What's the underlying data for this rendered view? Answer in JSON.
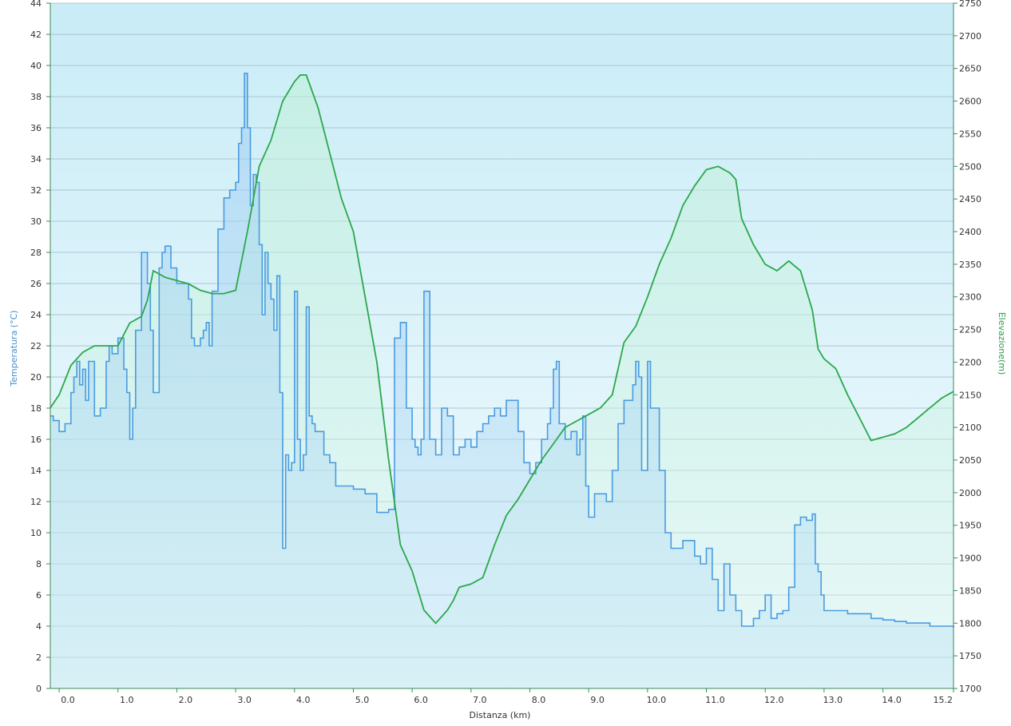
{
  "chart_data": {
    "type": "line",
    "title": "",
    "xlabel": "Distanza  (km)",
    "ylabel_left": "Temperatura (°C)",
    "ylabel_right": "Elevazione(m)",
    "xlim": [
      -0.15,
      15.2
    ],
    "ylim_left": [
      0,
      44
    ],
    "ylim_right": [
      1700,
      2750
    ],
    "x_ticks": [
      "0.0",
      "1.0",
      "2.0",
      "3.0",
      "4.0",
      "5.0",
      "6.0",
      "7.0",
      "8.0",
      "9.0",
      "10.0",
      "11.0",
      "12.0",
      "13.0",
      "14.0",
      "15.2"
    ],
    "y_left_ticks": [
      "0",
      "2",
      "4",
      "6",
      "8",
      "10",
      "12",
      "14",
      "16",
      "18",
      "20",
      "22",
      "24",
      "26",
      "28",
      "30",
      "32",
      "34",
      "36",
      "38",
      "40",
      "42",
      "44"
    ],
    "y_right_ticks": [
      "1700",
      "1750",
      "1800",
      "1850",
      "1900",
      "1950",
      "2000",
      "2050",
      "2100",
      "2150",
      "2200",
      "2250",
      "2300",
      "2350",
      "2400",
      "2450",
      "2500",
      "2550",
      "2600",
      "2650",
      "2700",
      "2750"
    ],
    "grid": true,
    "series": [
      {
        "name": "Temperatura (°C)",
        "color": "#4a9be0",
        "axis": "left",
        "x": [
          -0.15,
          -0.1,
          0.0,
          0.1,
          0.2,
          0.25,
          0.3,
          0.35,
          0.4,
          0.45,
          0.5,
          0.6,
          0.7,
          0.8,
          0.85,
          0.9,
          1.0,
          1.1,
          1.15,
          1.2,
          1.25,
          1.3,
          1.4,
          1.5,
          1.55,
          1.6,
          1.7,
          1.75,
          1.8,
          1.9,
          2.0,
          2.1,
          2.2,
          2.25,
          2.3,
          2.4,
          2.45,
          2.5,
          2.55,
          2.6,
          2.7,
          2.8,
          2.9,
          3.0,
          3.05,
          3.1,
          3.15,
          3.2,
          3.25,
          3.3,
          3.35,
          3.4,
          3.45,
          3.5,
          3.55,
          3.6,
          3.65,
          3.7,
          3.75,
          3.8,
          3.85,
          3.9,
          3.95,
          4.0,
          4.05,
          4.1,
          4.15,
          4.2,
          4.25,
          4.3,
          4.35,
          4.4,
          4.5,
          4.6,
          4.7,
          4.8,
          5.0,
          5.2,
          5.4,
          5.6,
          5.7,
          5.8,
          5.9,
          6.0,
          6.05,
          6.1,
          6.15,
          6.2,
          6.3,
          6.4,
          6.5,
          6.6,
          6.7,
          6.8,
          6.9,
          7.0,
          7.1,
          7.2,
          7.3,
          7.4,
          7.5,
          7.6,
          7.7,
          7.8,
          7.9,
          8.0,
          8.1,
          8.2,
          8.3,
          8.35,
          8.4,
          8.45,
          8.5,
          8.6,
          8.7,
          8.8,
          8.85,
          8.9,
          8.95,
          9.0,
          9.1,
          9.2,
          9.3,
          9.4,
          9.5,
          9.6,
          9.7,
          9.75,
          9.8,
          9.85,
          9.9,
          10.0,
          10.05,
          10.1,
          10.2,
          10.3,
          10.4,
          10.5,
          10.6,
          10.7,
          10.8,
          10.9,
          11.0,
          11.1,
          11.2,
          11.3,
          11.4,
          11.5,
          11.6,
          11.7,
          11.8,
          11.9,
          12.0,
          12.1,
          12.2,
          12.3,
          12.4,
          12.5,
          12.6,
          12.7,
          12.8,
          12.85,
          12.9,
          12.95,
          13.0,
          13.1,
          13.2,
          13.4,
          13.6,
          13.8,
          14.0,
          14.2,
          14.4,
          14.6,
          14.8,
          15.0,
          15.2
        ],
        "y": [
          17.5,
          17.2,
          16.5,
          17.0,
          19.0,
          20.0,
          21.0,
          19.5,
          20.5,
          18.5,
          21.0,
          17.5,
          18.0,
          21.0,
          22.0,
          21.5,
          22.5,
          20.5,
          19.0,
          16.0,
          18.0,
          23.0,
          28.0,
          26.0,
          23.0,
          19.0,
          27.0,
          28.0,
          28.4,
          27.0,
          26.0,
          26.0,
          25.0,
          22.5,
          22.0,
          22.5,
          23.0,
          23.5,
          22.0,
          25.5,
          29.5,
          31.5,
          32.0,
          32.5,
          35.0,
          36.0,
          39.5,
          36.0,
          31.0,
          33.0,
          32.5,
          28.5,
          24.0,
          28.0,
          26.0,
          25.0,
          23.0,
          26.5,
          19.0,
          9.0,
          15.0,
          14.0,
          14.5,
          25.5,
          16.0,
          14.0,
          15.0,
          24.5,
          17.5,
          17.0,
          16.5,
          16.5,
          15.0,
          14.5,
          13.0,
          13.0,
          12.8,
          12.5,
          11.3,
          11.5,
          22.5,
          23.5,
          18.0,
          16.0,
          15.5,
          15.0,
          16.0,
          25.5,
          16.0,
          15.0,
          18.0,
          17.5,
          15.0,
          15.5,
          16.0,
          15.5,
          16.5,
          17.0,
          17.5,
          18.0,
          17.5,
          18.5,
          18.5,
          16.5,
          14.5,
          13.8,
          14.5,
          16.0,
          17.0,
          18.0,
          20.5,
          21.0,
          17.0,
          16.0,
          16.5,
          15.0,
          16.0,
          17.5,
          13.0,
          11.0,
          12.5,
          12.5,
          12.0,
          14.0,
          17.0,
          18.5,
          18.5,
          19.5,
          21.0,
          20.0,
          14.0,
          21.0,
          18.0,
          18.0,
          14.0,
          10.0,
          9.0,
          9.0,
          9.5,
          9.5,
          8.5,
          8.0,
          9.0,
          7.0,
          5.0,
          8.0,
          6.0,
          5.0,
          4.0,
          4.0,
          4.5,
          5.0,
          6.0,
          4.5,
          4.8,
          5.0,
          6.5,
          10.5,
          11.0,
          10.8,
          11.2,
          8.0,
          7.5,
          6.0,
          5.0,
          5.0,
          5.0,
          4.8,
          4.8,
          4.5,
          4.4,
          4.3,
          4.2,
          4.2,
          4.0,
          4.0,
          3.9
        ]
      },
      {
        "name": "Elevazione(m)",
        "color": "#2aa84a",
        "axis": "right",
        "x": [
          -0.15,
          0.0,
          0.2,
          0.4,
          0.6,
          0.8,
          1.0,
          1.2,
          1.4,
          1.5,
          1.6,
          1.8,
          2.0,
          2.2,
          2.4,
          2.6,
          2.8,
          3.0,
          3.2,
          3.4,
          3.6,
          3.8,
          4.0,
          4.1,
          4.2,
          4.3,
          4.4,
          4.6,
          4.8,
          5.0,
          5.2,
          5.4,
          5.6,
          5.8,
          6.0,
          6.2,
          6.4,
          6.5,
          6.6,
          6.7,
          6.8,
          7.0,
          7.2,
          7.4,
          7.6,
          7.8,
          8.0,
          8.2,
          8.4,
          8.6,
          8.8,
          9.0,
          9.2,
          9.4,
          9.6,
          9.8,
          10.0,
          10.2,
          10.4,
          10.6,
          10.8,
          11.0,
          11.2,
          11.4,
          11.5,
          11.6,
          11.8,
          12.0,
          12.2,
          12.4,
          12.6,
          12.8,
          12.9,
          13.0,
          13.2,
          13.4,
          13.6,
          13.8,
          14.0,
          14.2,
          14.4,
          14.6,
          14.8,
          15.0,
          15.2
        ],
        "y": [
          2130,
          2150,
          2195,
          2215,
          2225,
          2225,
          2225,
          2260,
          2270,
          2295,
          2340,
          2330,
          2325,
          2320,
          2310,
          2305,
          2305,
          2310,
          2400,
          2500,
          2540,
          2600,
          2630,
          2640,
          2640,
          2615,
          2590,
          2520,
          2450,
          2400,
          2300,
          2200,
          2050,
          1920,
          1880,
          1820,
          1800,
          1810,
          1820,
          1835,
          1855,
          1860,
          1870,
          1920,
          1965,
          1990,
          2020,
          2050,
          2075,
          2100,
          2110,
          2120,
          2130,
          2150,
          2230,
          2255,
          2300,
          2350,
          2390,
          2440,
          2470,
          2495,
          2500,
          2490,
          2480,
          2420,
          2380,
          2350,
          2340,
          2355,
          2340,
          2280,
          2220,
          2205,
          2190,
          2150,
          2115,
          2080,
          2085,
          2090,
          2100,
          2115,
          2130,
          2145,
          2155
        ]
      }
    ]
  }
}
